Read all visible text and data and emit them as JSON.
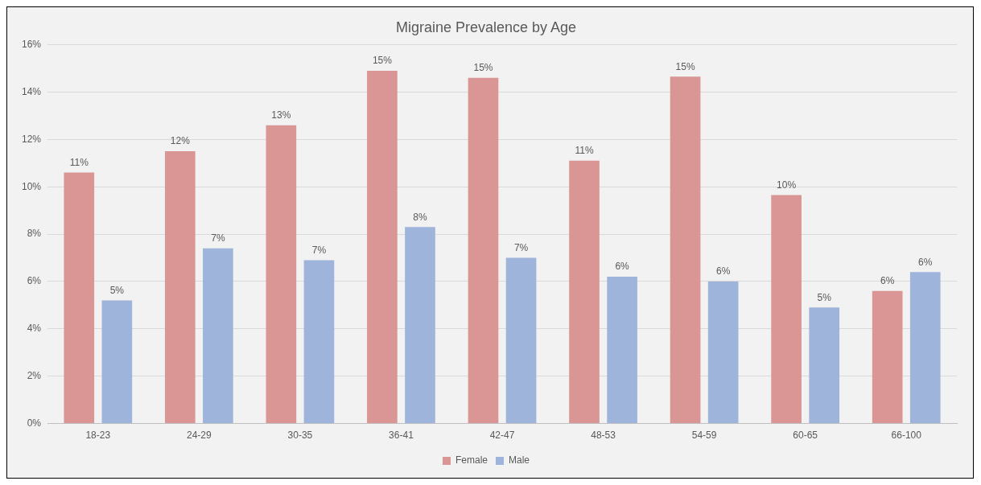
{
  "chart_data": {
    "type": "bar",
    "title": "Migraine Prevalence by Age",
    "categories": [
      "18-23",
      "24-29",
      "30-35",
      "36-41",
      "42-47",
      "48-53",
      "54-59",
      "60-65",
      "66-100"
    ],
    "series": [
      {
        "name": "Female",
        "color": "#d99694",
        "values": [
          10.6,
          11.5,
          12.6,
          14.9,
          14.6,
          11.1,
          14.65,
          9.65,
          5.6
        ],
        "value_labels": [
          "11%",
          "12%",
          "13%",
          "15%",
          "15%",
          "11%",
          "15%",
          "10%",
          "6%"
        ]
      },
      {
        "name": "Male",
        "color": "#9fb4da",
        "values": [
          5.2,
          7.4,
          6.9,
          8.3,
          7.0,
          6.2,
          6.0,
          4.9,
          6.4
        ],
        "value_labels": [
          "5%",
          "7%",
          "7%",
          "8%",
          "7%",
          "6%",
          "6%",
          "5%",
          "6%"
        ]
      }
    ],
    "ylim": [
      0,
      16
    ],
    "yticks": [
      {
        "value": 0,
        "label": "0%"
      },
      {
        "value": 2,
        "label": "2%"
      },
      {
        "value": 4,
        "label": "4%"
      },
      {
        "value": 6,
        "label": "6%"
      },
      {
        "value": 8,
        "label": "8%"
      },
      {
        "value": 10,
        "label": "10%"
      },
      {
        "value": 12,
        "label": "12%"
      },
      {
        "value": 14,
        "label": "14%"
      },
      {
        "value": 16,
        "label": "16%"
      }
    ],
    "grid": "y",
    "legend": "bottom"
  }
}
